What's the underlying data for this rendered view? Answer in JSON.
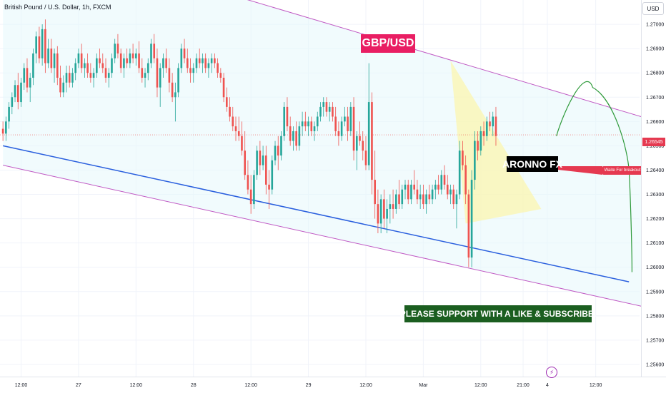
{
  "header": {
    "symbol_title": "British Pound / U.S. Dollar, 1h, FXCM",
    "currency_button": "USD"
  },
  "annotations": {
    "pair_label": "GBP/USD",
    "brand_label": "ARONNO FX",
    "support_label": "PLEASE SUPPORT WITH A LIKE & SUBSCRIBE.",
    "wait_label": "Waite For breakout"
  },
  "colors": {
    "bull": "#26a69a",
    "bear": "#ef5350",
    "channel": "#c05ac4",
    "support_line": "#2a5fde",
    "projection": "#2e9a3a",
    "pattern_fill": "#fff59d",
    "pair_tag": "#e91e63",
    "support_tag": "#1b5e20",
    "price_tag": "#e53950"
  },
  "chart_data": {
    "type": "candlestick",
    "ylim": [
      1.2555,
      1.271
    ],
    "last_price": "1.26545",
    "price_ticks": [
      "1.27000",
      "1.26900",
      "1.26800",
      "1.26700",
      "1.26600",
      "1.26500",
      "1.26400",
      "1.26300",
      "1.26200",
      "1.26100",
      "1.26000",
      "1.25900",
      "1.25800",
      "1.25700",
      "1.25600"
    ],
    "time_ticks": [
      {
        "label": "12:00",
        "bar": 6
      },
      {
        "label": "27",
        "bar": 25
      },
      {
        "label": "12:00",
        "bar": 44
      },
      {
        "label": "28",
        "bar": 63
      },
      {
        "label": "12:00",
        "bar": 82
      },
      {
        "label": "29",
        "bar": 101
      },
      {
        "label": "12:00",
        "bar": 120
      },
      {
        "label": "Mar",
        "bar": 139
      },
      {
        "label": "12:00",
        "bar": 158
      },
      {
        "label": "21:00",
        "bar": 172
      },
      {
        "label": "4",
        "bar": 180
      },
      {
        "label": "12:00",
        "bar": 196
      }
    ],
    "bar_count": 211,
    "candles": [
      [
        1.2657,
        1.266,
        1.2652,
        1.2655
      ],
      [
        1.2655,
        1.2662,
        1.2652,
        1.266
      ],
      [
        1.266,
        1.2668,
        1.2657,
        1.2666
      ],
      [
        1.2666,
        1.2672,
        1.2663,
        1.267
      ],
      [
        1.267,
        1.2677,
        1.2668,
        1.2675
      ],
      [
        1.2675,
        1.268,
        1.2665,
        1.2668
      ],
      [
        1.2668,
        1.2678,
        1.2666,
        1.2676
      ],
      [
        1.2676,
        1.2684,
        1.2673,
        1.2682
      ],
      [
        1.2682,
        1.2686,
        1.2672,
        1.2674
      ],
      [
        1.2674,
        1.268,
        1.2668,
        1.2678
      ],
      [
        1.2678,
        1.269,
        1.2675,
        1.2688
      ],
      [
        1.2688,
        1.2697,
        1.2684,
        1.2695
      ],
      [
        1.2695,
        1.2699,
        1.2684,
        1.2686
      ],
      [
        1.2686,
        1.27,
        1.2683,
        1.2698
      ],
      [
        1.2698,
        1.2702,
        1.268,
        1.2684
      ],
      [
        1.2684,
        1.2694,
        1.2682,
        1.269
      ],
      [
        1.269,
        1.2694,
        1.268,
        1.2682
      ],
      [
        1.2682,
        1.269,
        1.2676,
        1.2688
      ],
      [
        1.2688,
        1.2691,
        1.2675,
        1.2678
      ],
      [
        1.2678,
        1.2683,
        1.267,
        1.2672
      ],
      [
        1.2672,
        1.2679,
        1.267,
        1.2676
      ],
      [
        1.2676,
        1.2683,
        1.2672,
        1.268
      ],
      [
        1.268,
        1.2683,
        1.2674,
        1.2676
      ],
      [
        1.2676,
        1.2682,
        1.2674,
        1.268
      ],
      [
        1.268,
        1.2686,
        1.2677,
        1.2684
      ],
      [
        1.2684,
        1.269,
        1.2682,
        1.2688
      ],
      [
        1.2688,
        1.2692,
        1.268,
        1.2682
      ],
      [
        1.2682,
        1.2686,
        1.2678,
        1.2684
      ],
      [
        1.2684,
        1.2688,
        1.2678,
        1.268
      ],
      [
        1.268,
        1.2684,
        1.2676,
        1.2678
      ],
      [
        1.2678,
        1.2682,
        1.2674,
        1.268
      ],
      [
        1.268,
        1.2688,
        1.2678,
        1.2686
      ],
      [
        1.2686,
        1.269,
        1.2682,
        1.2684
      ],
      [
        1.2684,
        1.2688,
        1.268,
        1.2682
      ],
      [
        1.2682,
        1.2686,
        1.2676,
        1.2678
      ],
      [
        1.2678,
        1.2682,
        1.2674,
        1.268
      ],
      [
        1.268,
        1.2688,
        1.2678,
        1.2686
      ],
      [
        1.2686,
        1.2694,
        1.2684,
        1.2692
      ],
      [
        1.2692,
        1.2696,
        1.2686,
        1.2688
      ],
      [
        1.2688,
        1.269,
        1.268,
        1.2682
      ],
      [
        1.2682,
        1.2688,
        1.2678,
        1.2686
      ],
      [
        1.2686,
        1.269,
        1.2682,
        1.2684
      ],
      [
        1.2684,
        1.269,
        1.2682,
        1.2688
      ],
      [
        1.2688,
        1.2692,
        1.2684,
        1.2686
      ],
      [
        1.2686,
        1.269,
        1.2683,
        1.2688
      ],
      [
        1.2688,
        1.2693,
        1.268,
        1.2682
      ],
      [
        1.2682,
        1.2686,
        1.2676,
        1.2678
      ],
      [
        1.2678,
        1.2682,
        1.2674,
        1.268
      ],
      [
        1.268,
        1.2686,
        1.2677,
        1.2684
      ],
      [
        1.2684,
        1.2694,
        1.2682,
        1.2692
      ],
      [
        1.2692,
        1.2696,
        1.2684,
        1.2686
      ],
      [
        1.2686,
        1.269,
        1.267,
        1.2674
      ],
      [
        1.2674,
        1.2684,
        1.2666,
        1.2682
      ],
      [
        1.2682,
        1.2688,
        1.2678,
        1.2686
      ],
      [
        1.2686,
        1.269,
        1.268,
        1.2682
      ],
      [
        1.2682,
        1.2686,
        1.2672,
        1.2676
      ],
      [
        1.2676,
        1.268,
        1.2668,
        1.267
      ],
      [
        1.267,
        1.2676,
        1.266,
        1.2672
      ],
      [
        1.2672,
        1.2684,
        1.267,
        1.2682
      ],
      [
        1.2682,
        1.2692,
        1.268,
        1.269
      ],
      [
        1.269,
        1.2694,
        1.2684,
        1.2686
      ],
      [
        1.2686,
        1.269,
        1.268,
        1.2682
      ],
      [
        1.2682,
        1.2686,
        1.2676,
        1.268
      ],
      [
        1.268,
        1.2684,
        1.2676,
        1.2682
      ],
      [
        1.2682,
        1.2688,
        1.268,
        1.2686
      ],
      [
        1.2686,
        1.269,
        1.2682,
        1.2684
      ],
      [
        1.2684,
        1.2688,
        1.268,
        1.2686
      ],
      [
        1.2686,
        1.2688,
        1.268,
        1.2682
      ],
      [
        1.2682,
        1.2686,
        1.2678,
        1.2684
      ],
      [
        1.2684,
        1.2688,
        1.268,
        1.2686
      ],
      [
        1.2686,
        1.2688,
        1.2682,
        1.2684
      ],
      [
        1.2684,
        1.2686,
        1.2678,
        1.268
      ],
      [
        1.268,
        1.2682,
        1.2676,
        1.2678
      ],
      [
        1.2678,
        1.268,
        1.2668,
        1.267
      ],
      [
        1.267,
        1.2674,
        1.2664,
        1.2666
      ],
      [
        1.2666,
        1.267,
        1.266,
        1.2662
      ],
      [
        1.2662,
        1.2666,
        1.2656,
        1.2658
      ],
      [
        1.2658,
        1.2662,
        1.2652,
        1.2656
      ],
      [
        1.2656,
        1.2662,
        1.2652,
        1.2654
      ],
      [
        1.2654,
        1.266,
        1.2646,
        1.2648
      ],
      [
        1.2648,
        1.2656,
        1.2636,
        1.2638
      ],
      [
        1.2638,
        1.2644,
        1.263,
        1.2632
      ],
      [
        1.2632,
        1.2638,
        1.2622,
        1.2626
      ],
      [
        1.2626,
        1.264,
        1.2624,
        1.2638
      ],
      [
        1.2638,
        1.265,
        1.2636,
        1.2648
      ],
      [
        1.2648,
        1.2652,
        1.2638,
        1.2642
      ],
      [
        1.2642,
        1.265,
        1.264,
        1.2646
      ],
      [
        1.2646,
        1.265,
        1.263,
        1.2634
      ],
      [
        1.2634,
        1.264,
        1.2624,
        1.2632
      ],
      [
        1.2632,
        1.2646,
        1.263,
        1.2644
      ],
      [
        1.2644,
        1.2652,
        1.2642,
        1.265
      ],
      [
        1.265,
        1.2654,
        1.264,
        1.2646
      ],
      [
        1.2646,
        1.2656,
        1.2644,
        1.2654
      ],
      [
        1.2654,
        1.2668,
        1.2652,
        1.2666
      ],
      [
        1.2666,
        1.267,
        1.2656,
        1.2658
      ],
      [
        1.2658,
        1.2662,
        1.265,
        1.2652
      ],
      [
        1.2652,
        1.2658,
        1.2648,
        1.2656
      ],
      [
        1.2656,
        1.266,
        1.2648,
        1.265
      ],
      [
        1.265,
        1.266,
        1.2648,
        1.2658
      ],
      [
        1.2658,
        1.2664,
        1.2654,
        1.266
      ],
      [
        1.266,
        1.2664,
        1.2656,
        1.2658
      ],
      [
        1.2658,
        1.2662,
        1.2654,
        1.266
      ],
      [
        1.266,
        1.2662,
        1.2654,
        1.2656
      ],
      [
        1.2656,
        1.266,
        1.2652,
        1.2658
      ],
      [
        1.2658,
        1.2664,
        1.2656,
        1.2662
      ],
      [
        1.2662,
        1.2668,
        1.266,
        1.2666
      ],
      [
        1.2666,
        1.267,
        1.2662,
        1.2668
      ],
      [
        1.2668,
        1.267,
        1.2662,
        1.2664
      ],
      [
        1.2664,
        1.2668,
        1.266,
        1.2666
      ],
      [
        1.2666,
        1.2668,
        1.266,
        1.2662
      ],
      [
        1.2662,
        1.2666,
        1.2654,
        1.2656
      ],
      [
        1.2656,
        1.266,
        1.265,
        1.2654
      ],
      [
        1.2654,
        1.2662,
        1.2652,
        1.266
      ],
      [
        1.266,
        1.2666,
        1.2658,
        1.2662
      ],
      [
        1.2662,
        1.2666,
        1.2652,
        1.2656
      ],
      [
        1.2656,
        1.2668,
        1.2654,
        1.2666
      ],
      [
        1.2666,
        1.267,
        1.2644,
        1.2648
      ],
      [
        1.2648,
        1.2656,
        1.264,
        1.2654
      ],
      [
        1.2654,
        1.266,
        1.265,
        1.2652
      ],
      [
        1.2652,
        1.2656,
        1.2644,
        1.2648
      ],
      [
        1.2648,
        1.2654,
        1.264,
        1.2642
      ],
      [
        1.2642,
        1.2684,
        1.264,
        1.2668
      ],
      [
        1.2668,
        1.2672,
        1.263,
        1.2636
      ],
      [
        1.2636,
        1.2648,
        1.262,
        1.2626
      ],
      [
        1.2626,
        1.2632,
        1.2614,
        1.2618
      ],
      [
        1.2618,
        1.263,
        1.2614,
        1.2628
      ],
      [
        1.2628,
        1.2632,
        1.2616,
        1.262
      ],
      [
        1.262,
        1.2628,
        1.2614,
        1.2624
      ],
      [
        1.2624,
        1.263,
        1.2618,
        1.2626
      ],
      [
        1.2626,
        1.2632,
        1.262,
        1.2624
      ],
      [
        1.2624,
        1.2632,
        1.2622,
        1.263
      ],
      [
        1.263,
        1.2636,
        1.2624,
        1.2626
      ],
      [
        1.2626,
        1.2634,
        1.2624,
        1.2632
      ],
      [
        1.2632,
        1.2636,
        1.2628,
        1.2634
      ],
      [
        1.2634,
        1.2636,
        1.2626,
        1.2628
      ],
      [
        1.2628,
        1.2636,
        1.2626,
        1.2634
      ],
      [
        1.2634,
        1.264,
        1.263,
        1.2632
      ],
      [
        1.2632,
        1.2636,
        1.2626,
        1.2628
      ],
      [
        1.2628,
        1.2634,
        1.2624,
        1.263
      ],
      [
        1.263,
        1.2634,
        1.2624,
        1.2626
      ],
      [
        1.2626,
        1.2632,
        1.2622,
        1.263
      ],
      [
        1.263,
        1.2634,
        1.2626,
        1.2628
      ],
      [
        1.2628,
        1.2634,
        1.2626,
        1.2632
      ],
      [
        1.2632,
        1.2636,
        1.2628,
        1.2634
      ],
      [
        1.2634,
        1.2638,
        1.263,
        1.2632
      ],
      [
        1.2632,
        1.264,
        1.263,
        1.2638
      ],
      [
        1.2638,
        1.2642,
        1.2632,
        1.2634
      ],
      [
        1.2634,
        1.2638,
        1.2628,
        1.263
      ],
      [
        1.263,
        1.2634,
        1.2626,
        1.2632
      ],
      [
        1.2632,
        1.2634,
        1.2624,
        1.2626
      ],
      [
        1.2626,
        1.2632,
        1.2616,
        1.263
      ],
      [
        1.263,
        1.2652,
        1.2628,
        1.2648
      ],
      [
        1.2648,
        1.2652,
        1.264,
        1.2642
      ],
      [
        1.2642,
        1.2646,
        1.2626,
        1.263
      ],
      [
        1.263,
        1.2632,
        1.26,
        1.2604
      ],
      [
        1.2604,
        1.264,
        1.26,
        1.2636
      ],
      [
        1.2636,
        1.2656,
        1.2632,
        1.2652
      ],
      [
        1.2652,
        1.2656,
        1.2644,
        1.2648
      ],
      [
        1.2648,
        1.2658,
        1.2646,
        1.2656
      ],
      [
        1.2656,
        1.266,
        1.265,
        1.2654
      ],
      [
        1.2654,
        1.2662,
        1.2652,
        1.266
      ],
      [
        1.266,
        1.2664,
        1.2656,
        1.2658
      ],
      [
        1.2658,
        1.2664,
        1.2654,
        1.2662
      ],
      [
        1.2662,
        1.2666,
        1.265,
        1.2654
      ]
    ],
    "channel_upper": [
      [
        0,
        1.274
      ],
      [
        211,
        1.2662
      ]
    ],
    "channel_lower": [
      [
        0,
        1.2642
      ],
      [
        211,
        1.2584
      ]
    ],
    "support_line": [
      [
        0,
        1.265
      ],
      [
        207,
        1.2594
      ]
    ],
    "pattern_points": [
      [
        148,
        1.2685
      ],
      [
        178,
        1.2624
      ],
      [
        202,
        1.268
      ]
    ],
    "projection": [
      [
        183,
        1.2654
      ],
      [
        195,
        1.2674
      ],
      [
        203,
        1.2664
      ],
      [
        207,
        1.264
      ],
      [
        208,
        1.2598
      ]
    ]
  }
}
